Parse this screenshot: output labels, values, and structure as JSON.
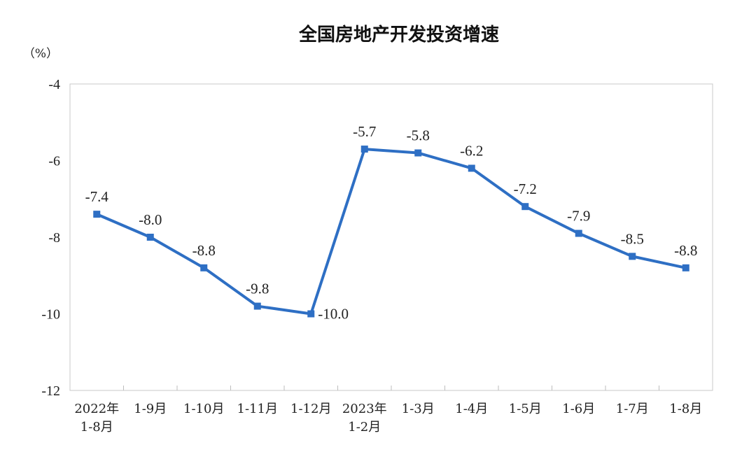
{
  "chart_data": {
    "type": "line",
    "title": "全国房地产开发投资增速",
    "ylabel": "（%）",
    "xlabel": "",
    "ylim": [
      -12,
      -4
    ],
    "yticks": [
      -4,
      -6,
      -8,
      -10,
      -12
    ],
    "grid": false,
    "categories": [
      [
        "2022年",
        "1-8月"
      ],
      [
        "1-9月"
      ],
      [
        "1-10月"
      ],
      [
        "1-11月"
      ],
      [
        "1-12月"
      ],
      [
        "2023年",
        "1-2月"
      ],
      [
        "1-3月"
      ],
      [
        "1-4月"
      ],
      [
        "1-5月"
      ],
      [
        "1-6月"
      ],
      [
        "1-7月"
      ],
      [
        "1-8月"
      ]
    ],
    "series": [
      {
        "values": [
          -7.4,
          -8.0,
          -8.8,
          -9.8,
          -10.0,
          -5.7,
          -5.8,
          -6.2,
          -7.2,
          -7.9,
          -8.5,
          -8.8
        ],
        "labels": [
          "-7.4",
          "-8.0",
          "-8.8",
          "-9.8",
          "-10.0",
          "-5.7",
          "-5.8",
          "-6.2",
          "-7.2",
          "-7.9",
          "-8.5",
          "-8.8"
        ],
        "color": "#2e6fc4"
      }
    ]
  }
}
